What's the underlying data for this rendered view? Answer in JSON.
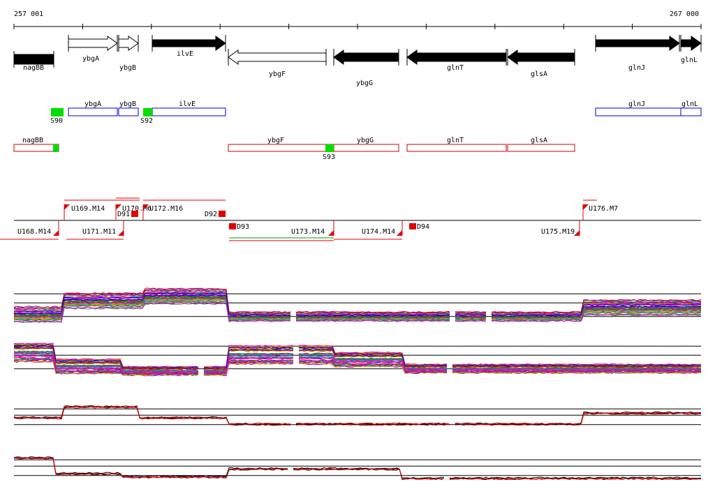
{
  "axis": {
    "start": "257 001",
    "end": "267 000"
  },
  "genes": [
    "nagBB",
    "ybgA",
    "ybgB",
    "ilvE",
    "ybgF",
    "ybgG",
    "glnT",
    "glsA",
    "glnJ",
    "glnL"
  ],
  "operons_forward": {
    "genes": [
      "ybgA",
      "ybgB",
      "ilvE",
      "glnJ",
      "glnL"
    ],
    "sites": [
      "S90",
      "S92"
    ]
  },
  "operons_reverse": {
    "genes": [
      "nagBB",
      "ybgF",
      "ybgG",
      "glnT",
      "glsA"
    ],
    "sites": [
      "S93"
    ]
  },
  "transcripts": [
    "U169.M14",
    "U170.M6",
    "D91",
    "U172.M16",
    "D92",
    "U176.M7",
    "U168.M14",
    "U171.M11",
    "D93",
    "U173.M14",
    "U174.M14",
    "D94",
    "U175.M19"
  ]
}
